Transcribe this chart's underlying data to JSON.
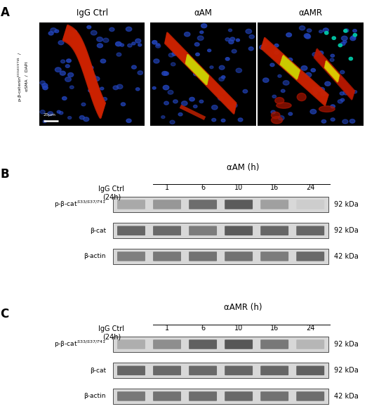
{
  "panel_A_label": "A",
  "panel_B_label": "B",
  "panel_C_label": "C",
  "panel_A_titles": [
    "IgG Ctrl",
    "αAM",
    "αAMR"
  ],
  "panel_B_title": "αAM (h)",
  "panel_C_title": "αAMR (h)",
  "time_points": [
    "1",
    "6",
    "10",
    "16",
    "24"
  ],
  "kda_labels": [
    "92 kDa",
    "92 kDa",
    "42 kDa"
  ],
  "scale_bar_text": "25μm",
  "bg_color": "#ffffff",
  "panel_label_fontsize": 12,
  "title_fontsize": 8.5,
  "label_fontsize": 7.5,
  "small_fontsize": 7,
  "tiny_fontsize": 6,
  "panel_B_bands": {
    "row0": [
      0.45,
      0.55,
      0.78,
      0.88,
      0.5,
      0.25
    ],
    "row1": [
      0.82,
      0.8,
      0.7,
      0.88,
      0.82,
      0.82
    ],
    "row2": [
      0.68,
      0.72,
      0.75,
      0.75,
      0.7,
      0.8
    ]
  },
  "panel_C_bands": {
    "row0": [
      0.42,
      0.6,
      0.85,
      0.9,
      0.72,
      0.38
    ],
    "row1": [
      0.82,
      0.8,
      0.8,
      0.82,
      0.82,
      0.85
    ],
    "row2": [
      0.72,
      0.75,
      0.78,
      0.8,
      0.76,
      0.78
    ]
  }
}
